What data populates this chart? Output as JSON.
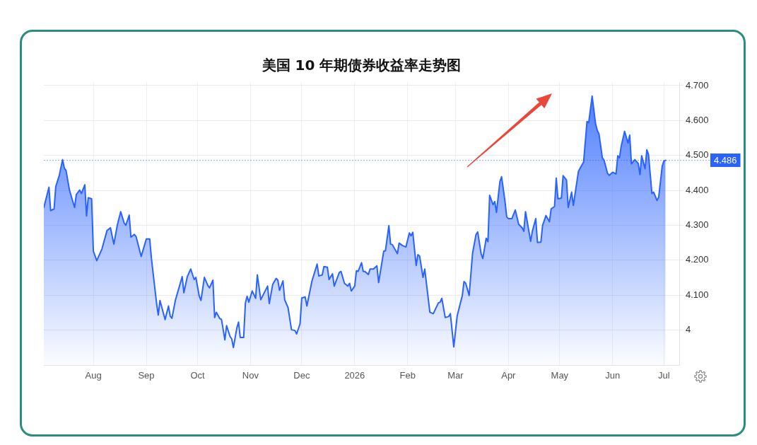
{
  "chart_data": {
    "type": "area",
    "title": "美国 10 年期债券收益率走势图",
    "x": [
      "2025-07-03",
      "2025-07-06",
      "2025-07-07",
      "2025-07-09",
      "2025-07-10",
      "2025-07-12",
      "2025-07-14",
      "2025-07-15",
      "2025-07-16",
      "2025-07-18",
      "2025-07-21",
      "2025-07-22",
      "2025-07-24",
      "2025-07-25",
      "2025-07-27",
      "2025-07-28",
      "2025-07-29",
      "2025-07-31",
      "2025-08-01",
      "2025-08-03",
      "2025-08-06",
      "2025-08-09",
      "2025-08-11",
      "2025-08-13",
      "2025-08-15",
      "2025-08-17",
      "2025-08-19",
      "2025-08-20",
      "2025-08-22",
      "2025-08-23",
      "2025-08-25",
      "2025-08-26",
      "2025-08-29",
      "2025-09-01",
      "2025-09-03",
      "2025-09-04",
      "2025-09-07",
      "2025-09-08",
      "2025-09-09",
      "2025-09-12",
      "2025-09-14",
      "2025-09-15",
      "2025-09-16",
      "2025-09-18",
      "2025-09-22",
      "2025-09-23",
      "2025-09-25",
      "2025-09-27",
      "2025-09-29",
      "2025-09-30",
      "2025-10-02",
      "2025-10-03",
      "2025-10-05",
      "2025-10-07",
      "2025-10-08",
      "2025-10-10",
      "2025-10-11",
      "2025-10-12",
      "2025-10-14",
      "2025-10-15",
      "2025-10-17",
      "2025-10-18",
      "2025-10-20",
      "2025-10-21",
      "2025-10-22",
      "2025-10-24",
      "2025-10-25",
      "2025-10-26",
      "2025-10-28",
      "2025-10-29",
      "2025-10-30",
      "2025-10-31",
      "2025-11-02",
      "2025-11-04",
      "2025-11-05",
      "2025-11-07",
      "2025-11-11",
      "2025-11-12",
      "2025-11-14",
      "2025-11-16",
      "2025-11-17",
      "2025-11-18",
      "2025-11-20",
      "2025-11-21",
      "2025-11-23",
      "2025-11-25",
      "2025-11-27",
      "2025-11-28",
      "2025-11-30",
      "2025-12-01",
      "2025-12-03",
      "2025-12-04",
      "2025-12-07",
      "2025-12-10",
      "2025-12-11",
      "2025-12-13",
      "2025-12-14",
      "2025-12-16",
      "2025-12-17",
      "2025-12-19",
      "2025-12-20",
      "2025-12-23",
      "2025-12-24",
      "2025-12-26",
      "2025-12-28",
      "2025-12-29",
      "2025-12-30",
      "2026-01-01",
      "2026-01-02",
      "2026-01-03",
      "2026-01-05",
      "2026-01-06",
      "2026-01-07",
      "2026-01-09",
      "2026-01-10",
      "2026-01-12",
      "2026-01-14",
      "2026-01-15",
      "2026-01-18",
      "2026-01-19",
      "2026-01-21",
      "2026-01-22",
      "2026-01-23",
      "2026-01-26",
      "2026-01-27",
      "2026-01-29",
      "2026-01-31",
      "2026-02-02",
      "2026-02-03",
      "2026-02-04",
      "2026-02-06",
      "2026-02-07",
      "2026-02-08",
      "2026-02-10",
      "2026-02-11",
      "2026-02-14",
      "2026-02-16",
      "2026-02-19",
      "2026-02-20",
      "2026-02-21",
      "2026-02-23",
      "2026-02-25",
      "2026-02-26",
      "2026-02-28",
      "2026-03-02",
      "2026-03-05",
      "2026-03-06",
      "2026-03-07",
      "2026-03-09",
      "2026-03-11",
      "2026-03-13",
      "2026-03-14",
      "2026-03-16",
      "2026-03-17",
      "2026-03-19",
      "2026-03-20",
      "2026-03-21",
      "2026-03-23",
      "2026-03-24",
      "2026-03-25",
      "2026-03-27",
      "2026-03-28",
      "2026-03-30",
      "2026-03-31",
      "2026-04-01",
      "2026-04-03",
      "2026-04-05",
      "2026-04-07",
      "2026-04-09",
      "2026-04-10",
      "2026-04-11",
      "2026-04-14",
      "2026-04-15",
      "2026-04-17",
      "2026-04-18",
      "2026-04-20",
      "2026-04-21",
      "2026-04-22",
      "2026-04-23",
      "2026-04-25",
      "2026-04-26",
      "2026-04-28",
      "2026-04-29",
      "2026-04-30",
      "2026-05-02",
      "2026-05-03",
      "2026-05-05",
      "2026-05-06",
      "2026-05-08",
      "2026-05-09",
      "2026-05-12",
      "2026-05-15",
      "2026-05-17",
      "2026-05-18",
      "2026-05-20",
      "2026-05-22",
      "2026-05-23",
      "2026-05-24",
      "2026-05-26",
      "2026-05-27",
      "2026-05-29",
      "2026-05-30",
      "2026-06-01",
      "2026-06-03",
      "2026-06-04",
      "2026-06-05",
      "2026-06-06",
      "2026-06-08",
      "2026-06-10",
      "2026-06-11",
      "2026-06-12",
      "2026-06-14",
      "2026-06-16",
      "2026-06-17",
      "2026-06-18",
      "2026-06-20",
      "2026-06-21",
      "2026-06-22",
      "2026-06-24",
      "2026-06-25",
      "2026-06-27",
      "2026-06-28",
      "2026-06-30",
      "2026-07-01",
      "2026-07-02"
    ],
    "series": [
      {
        "color": "#2962ff",
        "values": [
          4.351,
          4.409,
          4.342,
          4.347,
          4.411,
          4.442,
          4.488,
          4.464,
          4.457,
          4.401,
          4.351,
          4.388,
          4.401,
          4.391,
          4.416,
          4.327,
          4.379,
          4.376,
          4.226,
          4.199,
          4.232,
          4.285,
          4.293,
          4.246,
          4.3,
          4.339,
          4.307,
          4.3,
          4.329,
          4.266,
          4.274,
          4.268,
          4.211,
          4.261,
          4.261,
          4.205,
          4.077,
          4.043,
          4.085,
          4.03,
          4.069,
          4.04,
          4.034,
          4.085,
          4.153,
          4.107,
          4.153,
          4.175,
          4.145,
          4.151,
          4.097,
          4.085,
          4.151,
          4.128,
          4.121,
          4.143,
          4.036,
          4.051,
          4.033,
          4.031,
          3.972,
          4.013,
          3.982,
          3.975,
          3.95,
          4.006,
          4.023,
          3.979,
          3.979,
          4.077,
          4.097,
          4.08,
          4.112,
          4.091,
          4.158,
          4.087,
          4.126,
          4.076,
          4.131,
          4.148,
          4.143,
          4.114,
          4.141,
          4.087,
          4.064,
          4.001,
          3.999,
          3.989,
          4.018,
          4.092,
          4.095,
          4.069,
          4.141,
          4.189,
          4.155,
          4.158,
          4.182,
          4.18,
          4.145,
          4.161,
          4.126,
          4.165,
          4.168,
          4.134,
          4.126,
          4.134,
          4.112,
          4.126,
          4.17,
          4.168,
          4.193,
          4.168,
          4.168,
          4.159,
          4.175,
          4.175,
          4.184,
          4.136,
          4.226,
          4.227,
          4.299,
          4.246,
          4.245,
          4.219,
          4.249,
          4.242,
          4.238,
          4.278,
          4.27,
          4.28,
          4.185,
          4.216,
          4.212,
          4.151,
          4.175,
          4.051,
          4.047,
          4.078,
          4.08,
          4.091,
          4.036,
          4.039,
          4.047,
          3.952,
          4.041,
          4.099,
          4.139,
          4.134,
          4.099,
          4.22,
          4.273,
          4.281,
          4.219,
          4.205,
          4.263,
          4.253,
          4.386,
          4.359,
          4.368,
          4.337,
          4.425,
          4.439,
          4.368,
          4.324,
          4.319,
          4.319,
          4.344,
          4.303,
          4.293,
          4.283,
          4.339,
          4.254,
          4.283,
          4.319,
          4.251,
          4.252,
          4.3,
          4.314,
          4.328,
          4.31,
          4.347,
          4.354,
          4.435,
          4.376,
          4.378,
          4.442,
          4.43,
          4.351,
          4.395,
          4.357,
          4.455,
          4.481,
          4.597,
          4.594,
          4.67,
          4.591,
          4.572,
          4.562,
          4.493,
          4.486,
          4.449,
          4.443,
          4.452,
          4.447,
          4.499,
          4.493,
          4.526,
          4.569,
          4.536,
          4.558,
          4.476,
          4.488,
          4.477,
          4.445,
          4.499,
          4.462,
          4.516,
          4.503,
          4.391,
          4.395,
          4.371,
          4.381,
          4.469,
          4.484,
          4.486
        ]
      }
    ],
    "xlim": [
      "2025-07-03",
      "2026-07-10"
    ],
    "xticks": [
      {
        "value": "2025-08-01",
        "label": "Aug"
      },
      {
        "value": "2025-09-01",
        "label": "Sep"
      },
      {
        "value": "2025-10-01",
        "label": "Oct"
      },
      {
        "value": "2025-11-01",
        "label": "Nov"
      },
      {
        "value": "2025-12-01",
        "label": "Dec"
      },
      {
        "value": "2026-01-01",
        "label": "2026"
      },
      {
        "value": "2026-02-01",
        "label": "Feb"
      },
      {
        "value": "2026-03-01",
        "label": "Mar"
      },
      {
        "value": "2026-04-01",
        "label": "Apr"
      },
      {
        "value": "2026-05-01",
        "label": "May"
      },
      {
        "value": "2026-06-01",
        "label": "Jun"
      },
      {
        "value": "2026-07-01",
        "label": "Jul"
      }
    ],
    "ylim": [
      3.9,
      4.71
    ],
    "yticks": [
      4,
      {
        "value": 4.1,
        "label": "4.100"
      },
      {
        "value": 4.2,
        "label": "4.200"
      },
      {
        "value": 4.3,
        "label": "4.300"
      },
      {
        "value": 4.4,
        "label": "4.400"
      },
      {
        "value": 4.5,
        "label": "4.500"
      },
      {
        "value": 4.6,
        "label": "4.600"
      },
      {
        "value": 4.7,
        "label": "4.700"
      }
    ],
    "grid": true,
    "ref_lines": [
      {
        "axis": "y",
        "value": 4.486,
        "label": "4.486",
        "color": "#2962ff",
        "line_style": "dotted"
      }
    ]
  }
}
